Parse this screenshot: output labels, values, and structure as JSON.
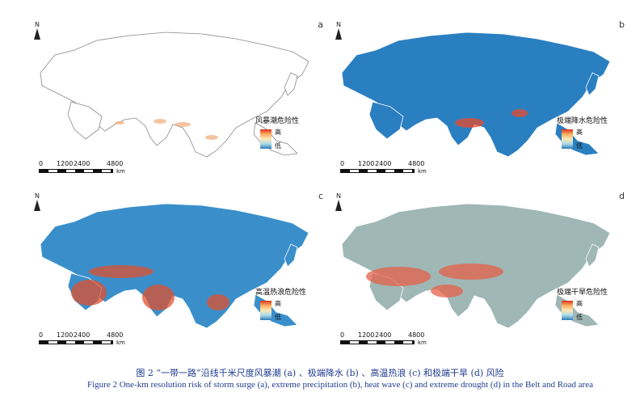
{
  "panels": [
    {
      "letter": "a",
      "legend_title": "风暴潮危险性",
      "high": "高",
      "low": "低",
      "fill": "#ffffff",
      "stroke": "#888888",
      "hotspot": "#f0b080"
    },
    {
      "letter": "b",
      "legend_title": "极端降水危险性",
      "high": "高",
      "low": "低",
      "fill": "#2a7fc1",
      "stroke": "#ffffff",
      "hotspot": "#e84a2a"
    },
    {
      "letter": "c",
      "legend_title": "高温热浪危险性",
      "high": "高",
      "low": "低",
      "fill": "#3a8fcb",
      "stroke": "#ffffff",
      "hotspot": "#e0502d"
    },
    {
      "letter": "d",
      "legend_title": "极端干旱危险性",
      "high": "高",
      "low": "低",
      "fill": "#9fb7b5",
      "stroke": "#ffffff",
      "hotspot": "#e6604a"
    }
  ],
  "north_label": "N",
  "scale": {
    "ticks": [
      "0",
      "1200",
      "2400",
      "4800"
    ],
    "unit": "km"
  },
  "caption": {
    "cn": "图 2 “一带一路”沿线千米尺度风暴潮 (a) 、极端降水 (b) 、高温热浪 (c) 和极端干旱 (d) 风险",
    "en": "Figure 2 One-km resolution risk of storm surge (a), extreme precipitation (b), heat wave (c) and extreme drought (d) in the Belt and Road area"
  }
}
